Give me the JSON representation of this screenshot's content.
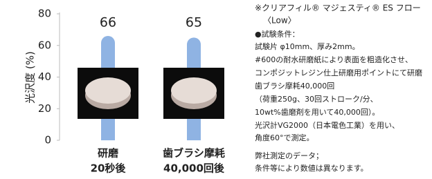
{
  "chart_data": {
    "type": "bar",
    "y_label": "光沢度 (%)",
    "categories": [
      [
        "研磨",
        "20秒後"
      ],
      [
        "歯ブラシ摩耗",
        "40,000回後"
      ]
    ],
    "values": [
      66,
      65
    ],
    "color": "#8fb3e3",
    "ylim": [
      0,
      80
    ],
    "yticks": [
      0,
      20,
      40,
      60,
      80
    ]
  },
  "notes": [
    "※クリアフィル® マジェスティ® ES フロー",
    "〈Low〉",
    "●試験条件：",
    "試験片 φ10mm、厚み2mm。",
    "#600の耐水研磨紙により表面を粗造化させ、",
    "コンポジットレジン仕上研磨用ポイントにて研磨",
    "歯ブラシ摩耗40,000回",
    "（荷重250g、30回ストローク/分、",
    "10wt%歯磨剤を用いて40,000回）。",
    "光沢計VG2000（日本電色工業）を用い、",
    "角度60°で測定。",
    "弊社測定のデータ；",
    "条件等により数値は異なります。"
  ]
}
